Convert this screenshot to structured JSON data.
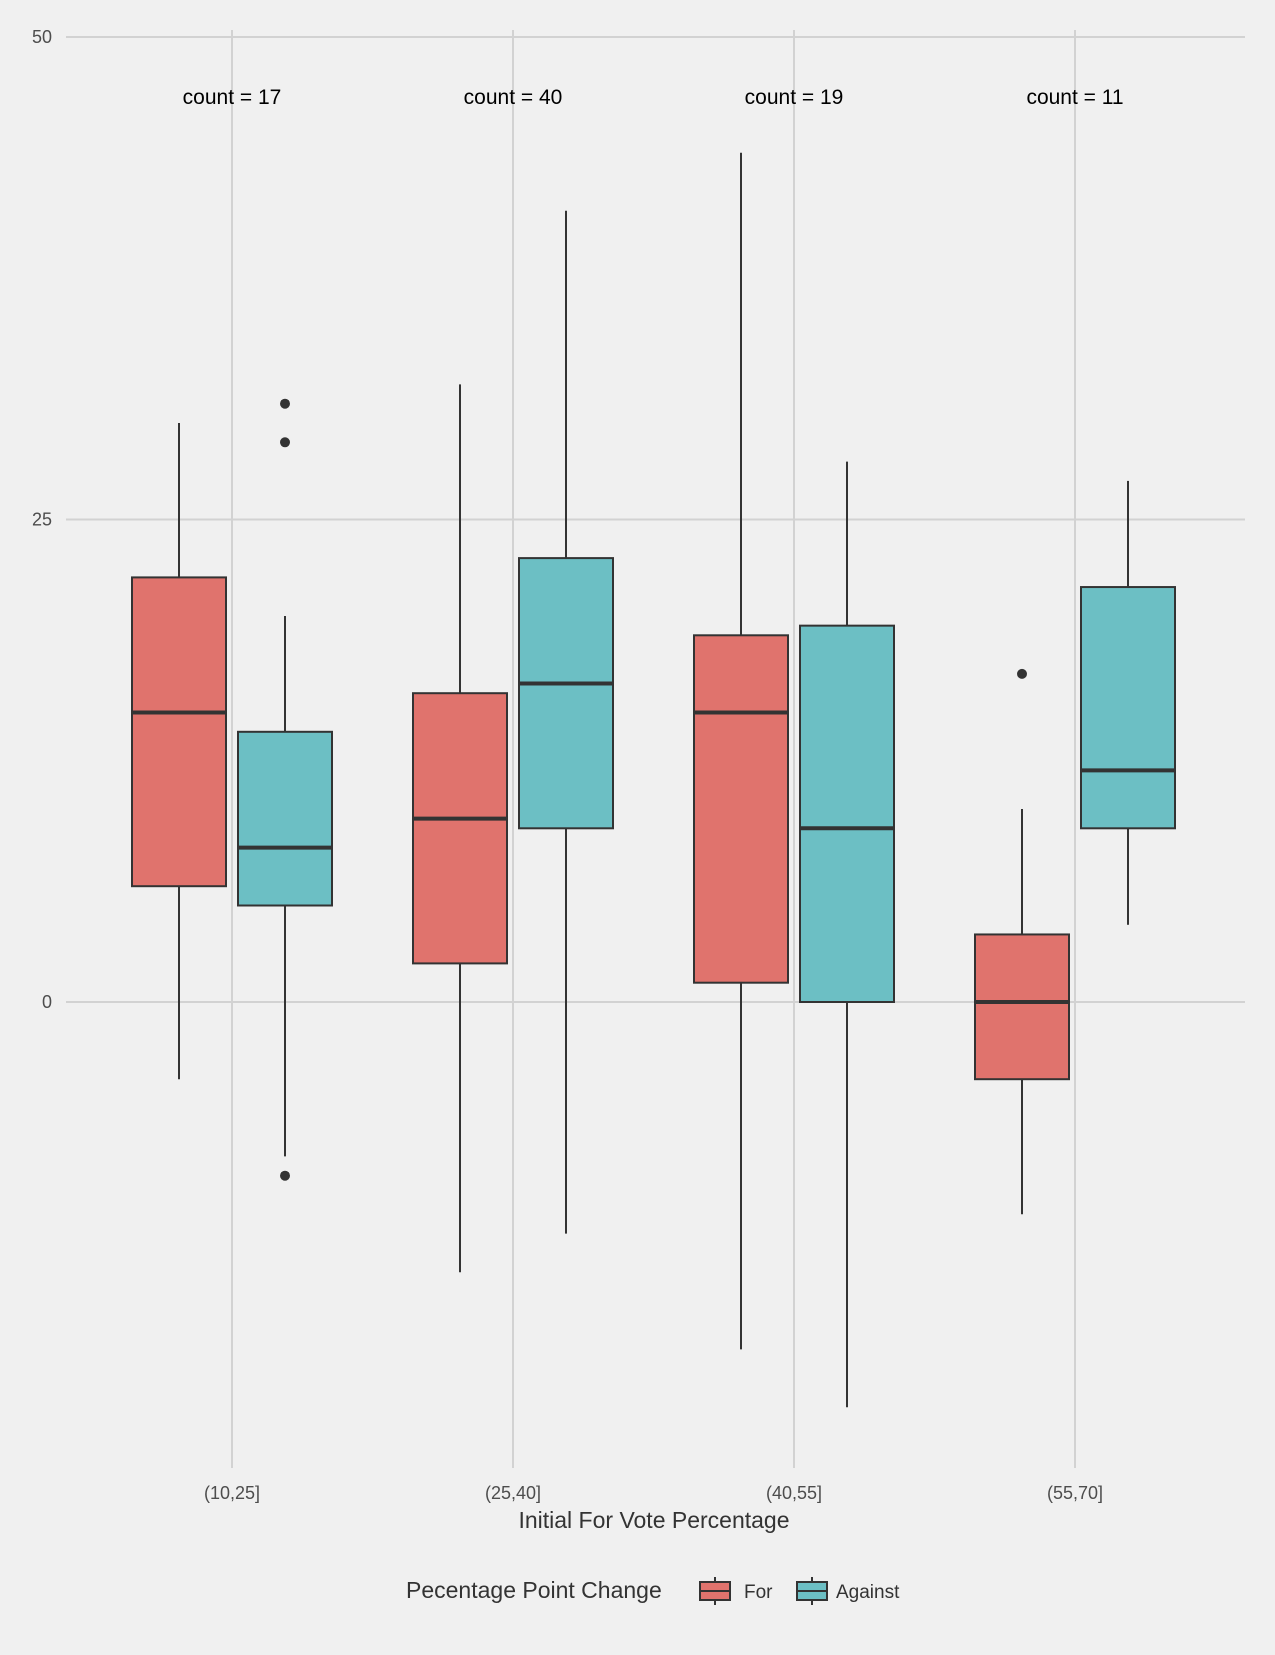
{
  "chart_data": {
    "type": "boxplot",
    "xlabel": "Initial For Vote Percentage",
    "ylabel": "",
    "ylim": [
      -23.5,
      50
    ],
    "y_ticks": [
      0,
      25,
      50
    ],
    "grid": true,
    "categories": [
      "(10,25]",
      "(25,40]",
      "(40,55]",
      "(55,70]"
    ],
    "count_labels": [
      "count = 17",
      "count = 40",
      "count = 19",
      "count = 11"
    ],
    "legend": {
      "title": "Pecentage Point Change",
      "position": "bottom",
      "entries": [
        {
          "label": "For",
          "color": "#e0736d"
        },
        {
          "label": "Against",
          "color": "#6cbfc4"
        }
      ]
    },
    "series": [
      {
        "name": "For",
        "color": "#e0736d",
        "boxes": [
          {
            "whisker_low": -4,
            "q1": 6,
            "median": 15,
            "q3": 22,
            "whisker_high": 30,
            "outliers": []
          },
          {
            "whisker_low": -14,
            "q1": 2,
            "median": 9.5,
            "q3": 16,
            "whisker_high": 32,
            "outliers": []
          },
          {
            "whisker_low": -18,
            "q1": 1,
            "median": 15,
            "q3": 19,
            "whisker_high": 44,
            "outliers": []
          },
          {
            "whisker_low": -11,
            "q1": -4,
            "median": 0,
            "q3": 3.5,
            "whisker_high": 10,
            "outliers": [
              17
            ]
          }
        ]
      },
      {
        "name": "Against",
        "color": "#6cbfc4",
        "boxes": [
          {
            "whisker_low": -8,
            "q1": 5,
            "median": 8,
            "q3": 14,
            "whisker_high": 20,
            "outliers": [
              31,
              29,
              -9
            ]
          },
          {
            "whisker_low": -12,
            "q1": 9,
            "median": 16.5,
            "q3": 23,
            "whisker_high": 41,
            "outliers": []
          },
          {
            "whisker_low": -21,
            "q1": 0,
            "median": 9,
            "q3": 19.5,
            "whisker_high": 28,
            "outliers": []
          },
          {
            "whisker_low": 4,
            "q1": 9,
            "median": 12,
            "q3": 21.5,
            "whisker_high": 27,
            "outliers": []
          }
        ]
      }
    ]
  },
  "colors": {
    "background": "#f0f0f0",
    "grid": "#d2d2d2",
    "box_stroke": "#333333"
  }
}
